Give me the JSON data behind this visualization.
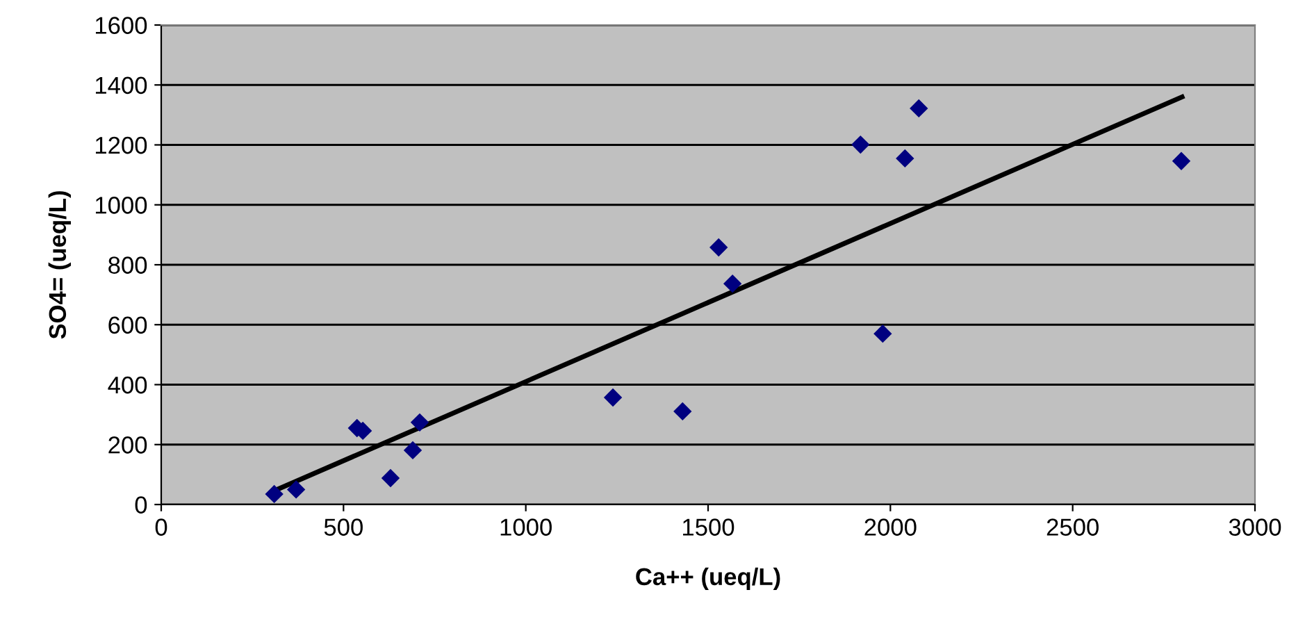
{
  "chart_data": {
    "type": "scatter",
    "xlabel": "Ca++ (ueq/L)",
    "ylabel": "SO4= (ueq/L)",
    "xlim": [
      0,
      3000
    ],
    "ylim": [
      0,
      1600
    ],
    "xticks": [
      0,
      500,
      1000,
      1500,
      2000,
      2500,
      3000
    ],
    "yticks": [
      0,
      200,
      400,
      600,
      800,
      1000,
      1200,
      1400,
      1600
    ],
    "grid": "y",
    "marker": "diamond",
    "series": [
      {
        "color": "#000080",
        "x": [
          310,
          370,
          537,
          553,
          629,
          690,
          709,
          1239,
          1430,
          1529,
          1567,
          1918,
          1979,
          2040,
          2078,
          2798
        ],
        "values": [
          35,
          50,
          255,
          246,
          88,
          181,
          274,
          357,
          311,
          858,
          737,
          1201,
          570,
          1155,
          1322,
          1146
        ]
      },
      {
        "type": "line",
        "color": "#000000",
        "line_style": "solid",
        "marker": "none",
        "x": [
          310,
          2800
        ],
        "values": [
          46,
          1360
        ]
      }
    ]
  }
}
